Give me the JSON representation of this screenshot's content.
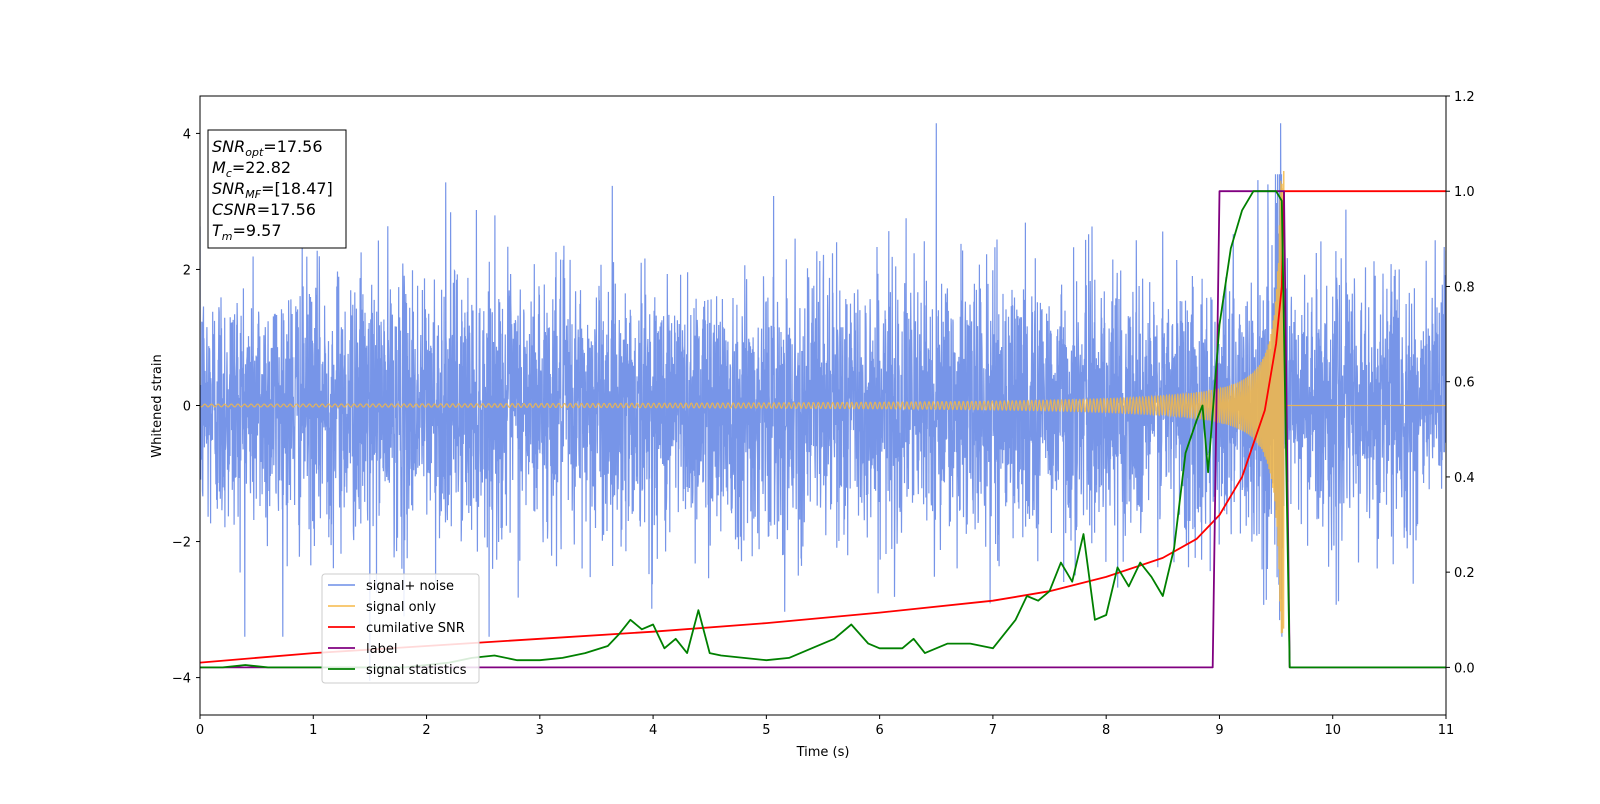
{
  "chart_data": {
    "type": "line",
    "xlabel": "Time (s)",
    "ylabel": "Whitened strain",
    "xlim": [
      0,
      11
    ],
    "ylim_left": [
      -4.55,
      4.55
    ],
    "ylim_right": [
      -0.1,
      1.2
    ],
    "x_ticks": [
      0,
      1,
      2,
      3,
      4,
      5,
      6,
      7,
      8,
      9,
      10,
      11
    ],
    "y_ticks_left": [
      -4,
      -2,
      0,
      2,
      4
    ],
    "y_ticks_right": [
      0.0,
      0.2,
      0.4,
      0.6,
      0.8,
      1.0,
      1.2
    ],
    "grid": false,
    "legend_position": "lower-left",
    "annotation": {
      "lines": [
        {
          "base": "SNR",
          "sub": "opt",
          "value": "=17.56"
        },
        {
          "base": "M",
          "sub": "c",
          "value": "=22.82"
        },
        {
          "base": "SNR",
          "sub": "MF",
          "value": "=[18.47]"
        },
        {
          "base": "CSNR",
          "sub": "",
          "value": "=17.56"
        },
        {
          "base": "T",
          "sub": "m",
          "value": "=9.57"
        }
      ]
    },
    "series": [
      {
        "name": "signal+ noise",
        "color": "#6b8ce6",
        "axis": "left",
        "description": "whitened noise, amplitude band about ±2 with spikes up to ±4.1",
        "spikes": [
          [
            1.5,
            -4.05
          ],
          [
            6.5,
            4.15
          ],
          [
            9.54,
            4.15
          ],
          [
            2.17,
            3.28
          ],
          [
            1.8,
            -3.1
          ]
        ]
      },
      {
        "name": "signal only",
        "color": "#f5b945",
        "axis": "left",
        "chirp": {
          "merger_time": 9.57,
          "peak_amplitude": 3.45,
          "base_amplitude": 0.02
        }
      },
      {
        "name": "cumilative SNR",
        "color": "#ff0000",
        "axis": "right",
        "x": [
          0,
          1,
          2,
          3,
          4,
          5,
          6,
          7,
          7.5,
          8,
          8.5,
          8.8,
          9.0,
          9.2,
          9.4,
          9.5,
          9.55,
          9.57,
          9.6,
          11
        ],
        "y": [
          0.01,
          0.03,
          0.045,
          0.06,
          0.075,
          0.093,
          0.115,
          0.14,
          0.16,
          0.19,
          0.23,
          0.27,
          0.32,
          0.4,
          0.54,
          0.68,
          0.8,
          1.0,
          1.0,
          1.0
        ]
      },
      {
        "name": "label",
        "color": "#800080",
        "axis": "right",
        "x": [
          0,
          8.94,
          9.0,
          9.57,
          9.62,
          11
        ],
        "y": [
          0,
          0,
          1,
          1,
          0,
          0
        ]
      },
      {
        "name": "signal statistics",
        "color": "#008000",
        "axis": "right",
        "x": [
          0,
          0.2,
          0.4,
          0.6,
          0.8,
          1.0,
          1.2,
          1.4,
          1.6,
          1.8,
          2.0,
          2.2,
          2.4,
          2.6,
          2.8,
          3.0,
          3.2,
          3.4,
          3.6,
          3.7,
          3.8,
          3.9,
          4.0,
          4.1,
          4.2,
          4.3,
          4.4,
          4.5,
          4.6,
          4.8,
          5.0,
          5.2,
          5.4,
          5.6,
          5.75,
          5.9,
          6.0,
          6.2,
          6.3,
          6.4,
          6.6,
          6.8,
          7.0,
          7.2,
          7.3,
          7.4,
          7.5,
          7.6,
          7.7,
          7.8,
          7.9,
          8.0,
          8.1,
          8.2,
          8.3,
          8.4,
          8.5,
          8.6,
          8.7,
          8.8,
          8.85,
          8.9,
          9.0,
          9.1,
          9.2,
          9.3,
          9.4,
          9.5,
          9.55,
          9.62,
          11
        ],
        "y": [
          0,
          0.0,
          0.005,
          0.0,
          0.0,
          0.0,
          0.0,
          0.0,
          0.0,
          0.0,
          0.005,
          0.01,
          0.02,
          0.025,
          0.015,
          0.015,
          0.02,
          0.03,
          0.045,
          0.07,
          0.1,
          0.08,
          0.09,
          0.04,
          0.06,
          0.03,
          0.12,
          0.03,
          0.025,
          0.02,
          0.015,
          0.02,
          0.04,
          0.06,
          0.09,
          0.05,
          0.04,
          0.04,
          0.06,
          0.03,
          0.05,
          0.05,
          0.04,
          0.1,
          0.15,
          0.14,
          0.16,
          0.22,
          0.18,
          0.28,
          0.1,
          0.11,
          0.21,
          0.17,
          0.22,
          0.19,
          0.15,
          0.25,
          0.45,
          0.52,
          0.55,
          0.41,
          0.72,
          0.88,
          0.96,
          1.0,
          1.0,
          1.0,
          0.98,
          0.0,
          0.0
        ]
      }
    ]
  }
}
